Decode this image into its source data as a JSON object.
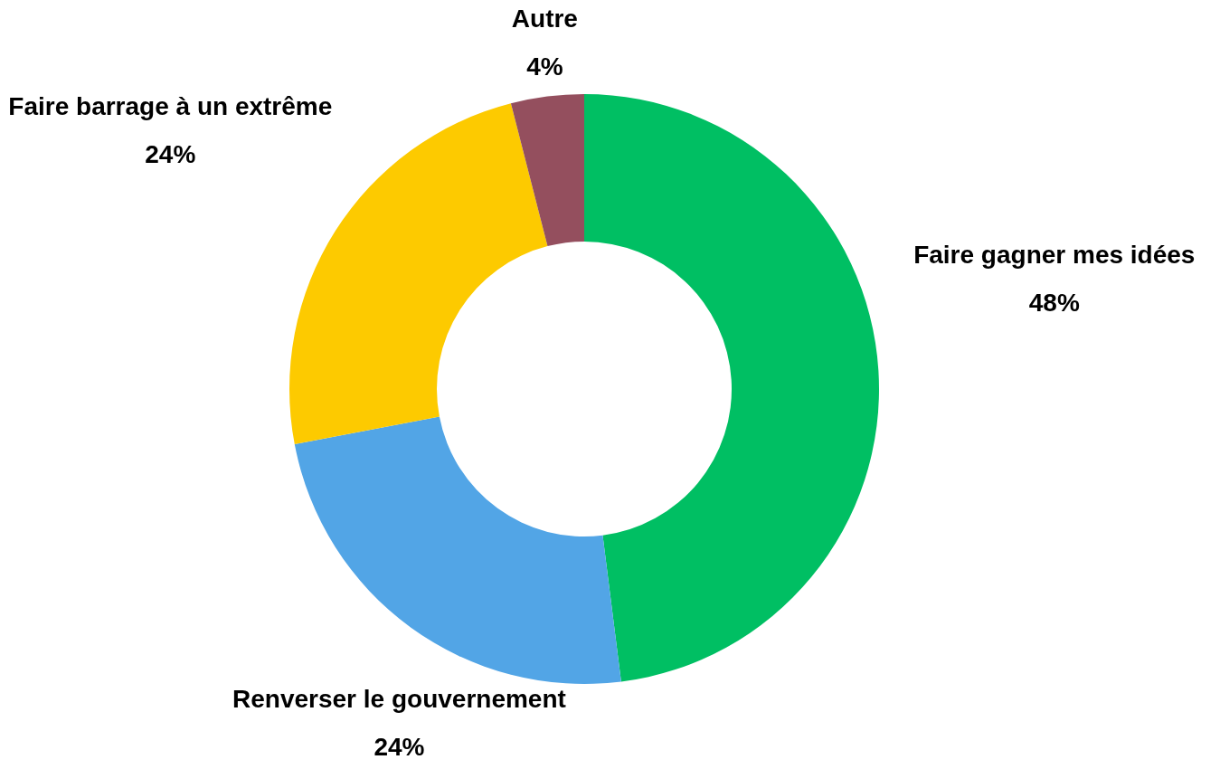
{
  "chart_data": {
    "type": "donut",
    "categories": [
      "Faire gagner mes idées",
      "Renverser le gouvernement",
      "Faire barrage à un extrême",
      "Autre"
    ],
    "values": [
      48,
      24,
      24,
      4
    ],
    "colors": [
      "#00bf63",
      "#52a5e6",
      "#fdca00",
      "#944f5e"
    ],
    "value_labels": [
      "48%",
      "24%",
      "24%",
      "4%"
    ]
  }
}
